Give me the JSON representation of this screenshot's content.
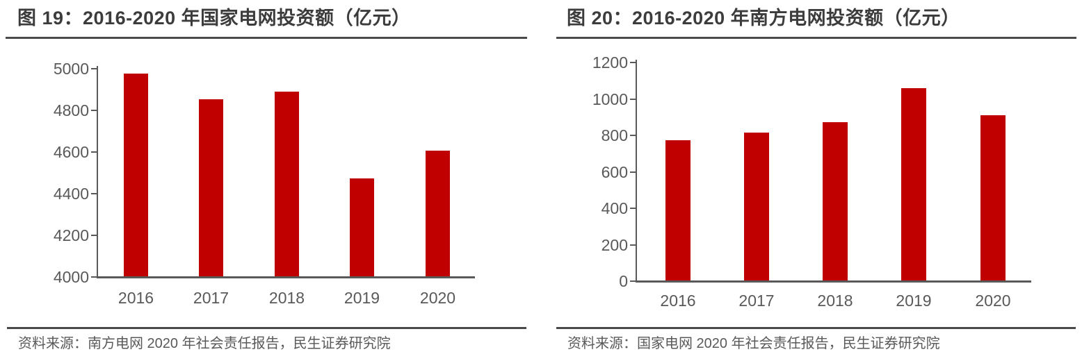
{
  "page": {
    "background": "#ffffff",
    "text_color": "#3c3c3c",
    "axis_text_color": "#595959"
  },
  "chart_data": [
    {
      "type": "bar",
      "title": "图 19：2016-2020 年国家电网投资额（亿元）",
      "categories": [
        "2016",
        "2017",
        "2018",
        "2019",
        "2020"
      ],
      "values": [
        4977,
        4854,
        4889,
        4473,
        4605
      ],
      "ylim": [
        4000,
        5000
      ],
      "yticks": [
        5000,
        4800,
        4600,
        4400,
        4200,
        4000
      ],
      "xlabel": "",
      "ylabel": "",
      "grid": false,
      "legend_position": "none",
      "bar_color": "#c00000",
      "axis_color": "#595959",
      "source": "资料来源：南方电网 2020 年社会责任报告，民生证券研究院"
    },
    {
      "type": "bar",
      "title": "图 20：2016-2020 年南方电网投资额（亿元）",
      "categories": [
        "2016",
        "2017",
        "2018",
        "2019",
        "2020"
      ],
      "values": [
        773,
        814,
        873,
        1058,
        910
      ],
      "ylim": [
        0,
        1200
      ],
      "yticks": [
        1200,
        1000,
        800,
        600,
        400,
        200,
        0
      ],
      "xlabel": "",
      "ylabel": "",
      "grid": false,
      "legend_position": "none",
      "bar_color": "#c00000",
      "axis_color": "#595959",
      "source": "资料来源：国家电网 2020 年社会责任报告，民生证券研究院"
    }
  ]
}
